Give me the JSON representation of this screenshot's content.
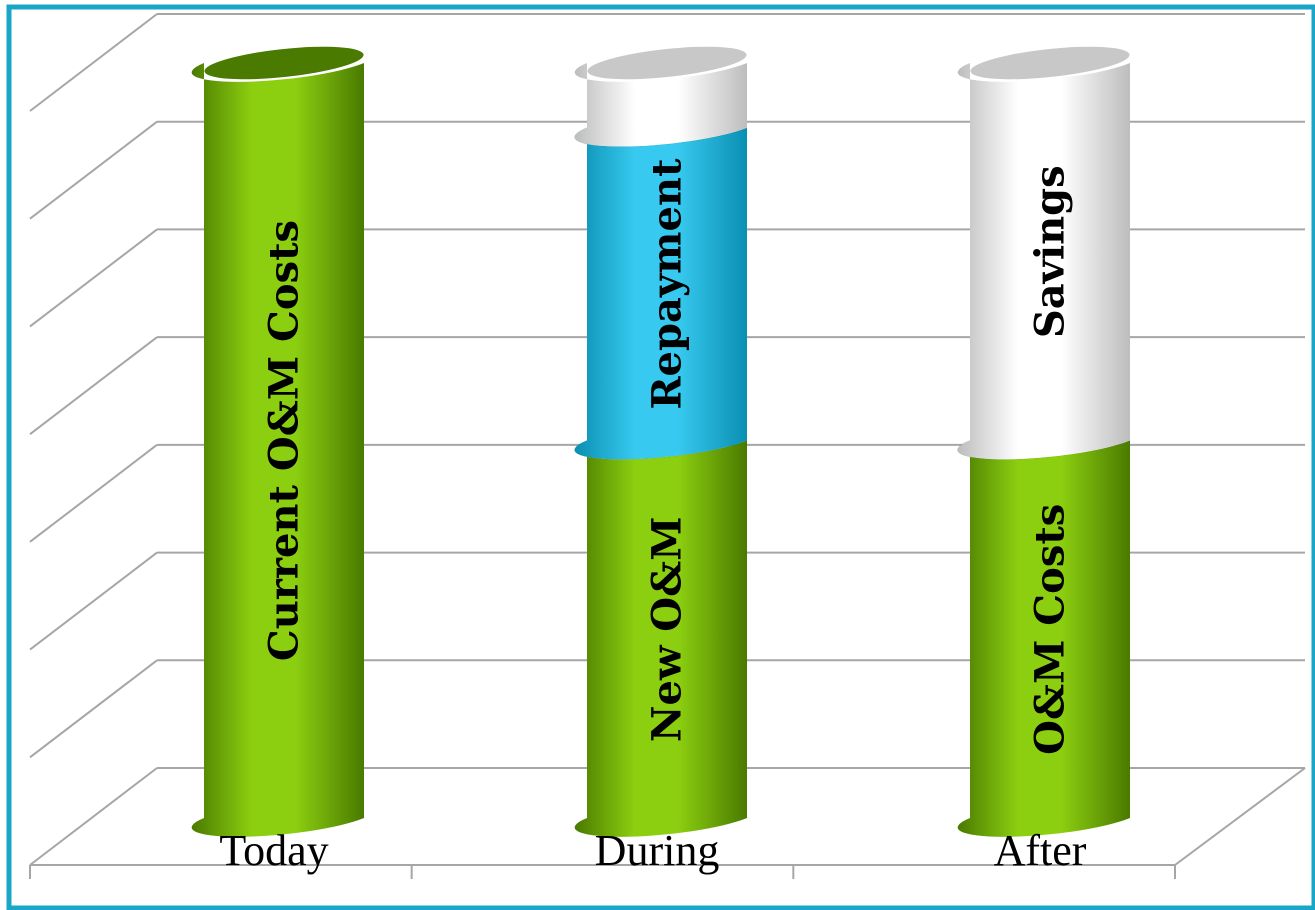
{
  "chart_data": {
    "type": "bar",
    "stacked": true,
    "three_d": true,
    "shape": "cylinder",
    "categories": [
      "Today",
      "During",
      "After"
    ],
    "series": [
      {
        "label_per_bar": [
          "Current  O&M  Costs",
          "New  O&M",
          "O&M Costs"
        ],
        "color": "#6aa300",
        "values": [
          7.0,
          3.5,
          3.5
        ]
      },
      {
        "label_per_bar": [
          "",
          "Repayment",
          "Savings"
        ],
        "colors_per_bar": [
          "",
          "#19b3dc",
          "#ffffff"
        ],
        "values": [
          0,
          2.9,
          3.5
        ]
      },
      {
        "label_per_bar": [
          "",
          "",
          ""
        ],
        "color": "#ffffff",
        "values": [
          0,
          0.6,
          0
        ]
      }
    ],
    "ylim": [
      0,
      7
    ],
    "grid": true,
    "axis_tick_labels_shown": false,
    "legend": "none"
  },
  "colors": {
    "frame_border": "#1aa6c6",
    "grid": "#a6a6a6",
    "green_light": "#8ccf10",
    "green_dark": "#4a7a00",
    "blue_light": "#37c9ef",
    "blue_dark": "#0a8fb2",
    "white_light": "#ffffff",
    "white_dark": "#bdbdbd",
    "cap_grey": "#c8c8c8",
    "text": "#000000"
  }
}
